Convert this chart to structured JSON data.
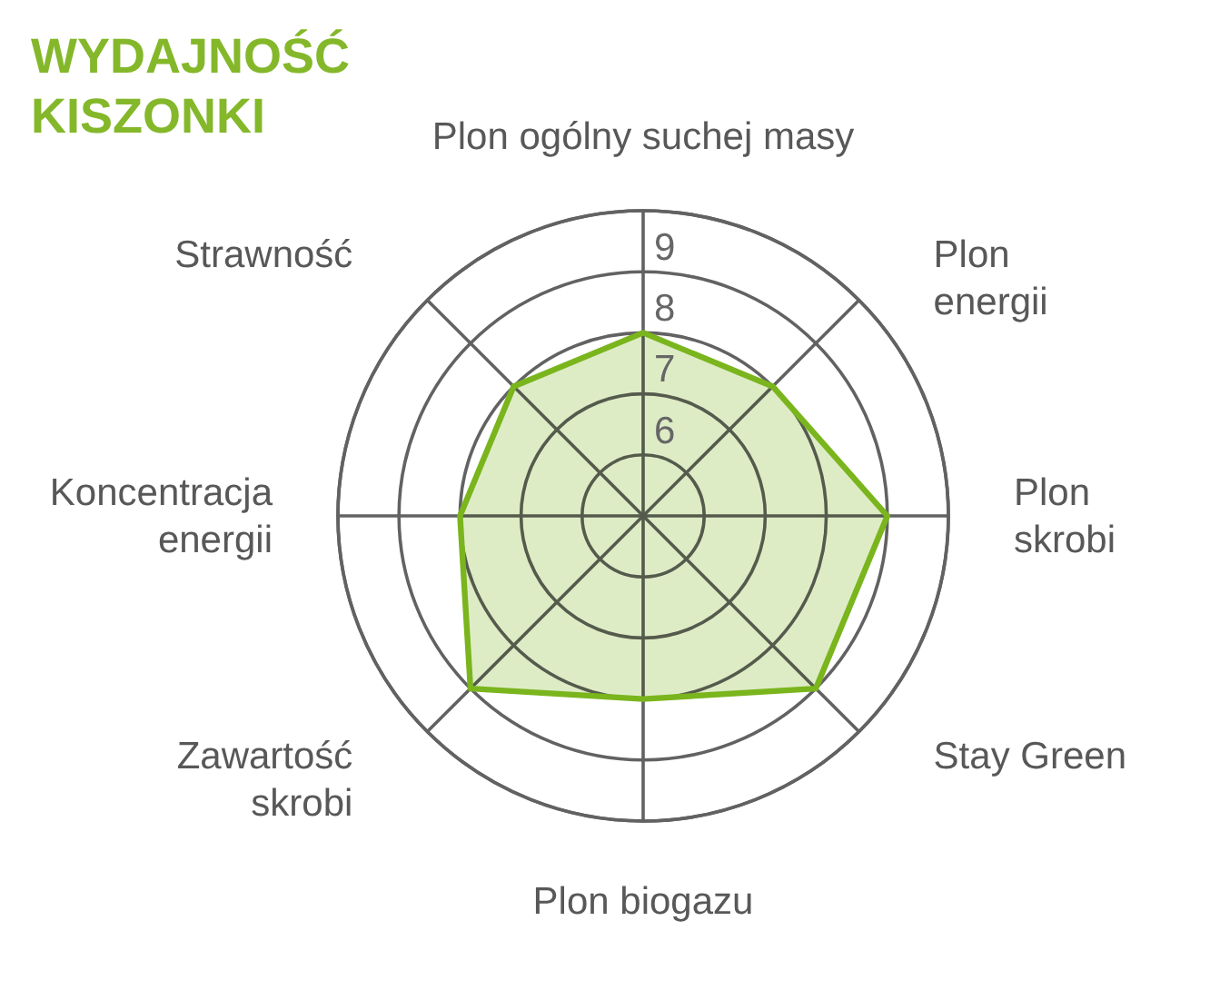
{
  "chart_data": {
    "type": "radar",
    "title": "WYDAJNOŚĆ\nKISZONKI",
    "categories": [
      "Plon ogólny suchej masy",
      "Plon\nenergii",
      "Plon\nskrobi",
      "Stay Green",
      "Plon biogazu",
      "Zawartość\nskrobi",
      "Koncentracja\nenergii",
      "Strawność"
    ],
    "series": [
      {
        "color": "#7ab51d",
        "values": [
          7,
          7,
          8,
          8,
          7,
          8,
          7,
          7
        ]
      }
    ],
    "ylim": [
      4,
      9
    ],
    "yticks": [
      6,
      7,
      8,
      9
    ],
    "grid": true
  }
}
